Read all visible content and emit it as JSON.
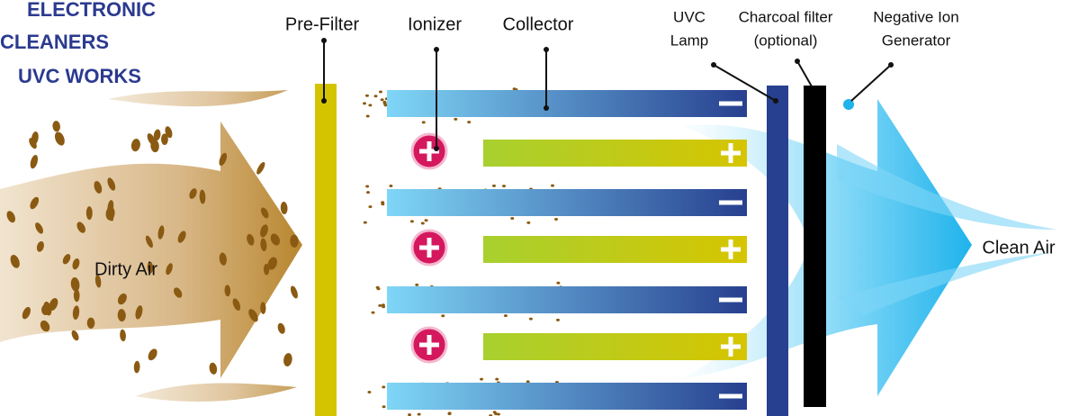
{
  "title": {
    "lines": [
      "ELECTRONIC",
      "CLEANERS",
      "UVC WORKS"
    ]
  },
  "labels": {
    "pre_filter": "Pre-Filter",
    "ionizer": "Ionizer",
    "collector": "Collector",
    "uvc_lamp": [
      "UVC",
      "Lamp"
    ],
    "charcoal_filter": [
      "Charcoal filter",
      "(optional)"
    ],
    "negative_ion_generator": [
      "Negative Ion",
      "Generator"
    ],
    "dirty_air": "Dirty Air",
    "clean_air": "Clean Air"
  }
}
